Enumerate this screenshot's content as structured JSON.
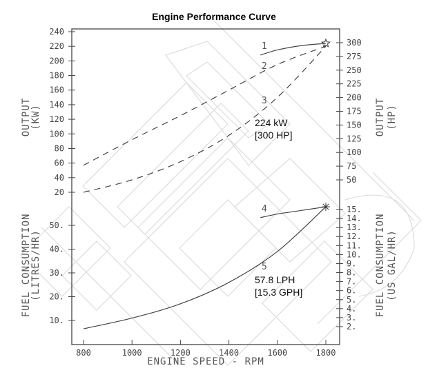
{
  "chart_data": {
    "type": "line",
    "title": "Engine Performance Curve",
    "xlabel": "ENGINE SPEED - RPM",
    "xlim": [
      800,
      1800
    ],
    "x_ticks": [
      "800",
      "1000",
      "1200",
      "1400",
      "1600",
      "1800"
    ],
    "axes": {
      "left_top": {
        "label": "OUTPUT",
        "unit": "(KW)",
        "range": [
          20,
          240
        ],
        "ticks": [
          "240",
          "220",
          "200",
          "180",
          "160",
          "140",
          "120",
          "100",
          "80",
          "60",
          "40",
          "20"
        ]
      },
      "left_bottom": {
        "label": "FUEL CONSUMPTION",
        "unit": "(LITRES/HR)",
        "range": [
          10,
          50
        ],
        "ticks": [
          "50.",
          "40.",
          "30.",
          "20.",
          "10."
        ]
      },
      "right_top": {
        "label": "OUTPUT",
        "unit": "(HP)",
        "range": [
          50,
          300
        ],
        "ticks": [
          "300",
          "275",
          "250",
          "225",
          "200",
          "175",
          "150",
          "125",
          "100",
          "75",
          "50"
        ]
      },
      "right_bottom": {
        "label": "FUEL CONSUMPTION",
        "unit": "(US GAL/HR)",
        "range": [
          2,
          15
        ],
        "ticks": [
          "15.",
          "14.",
          "13.",
          "12.",
          "11.",
          "10.",
          "9.",
          "8.",
          "7.",
          "6.",
          "5.",
          "4.",
          "3.",
          "2."
        ]
      }
    },
    "series": [
      {
        "name": "1",
        "style": "solid",
        "axis": "kW",
        "x": [
          1530,
          1600,
          1700,
          1800
        ],
        "values": [
          208,
          215,
          221,
          224
        ]
      },
      {
        "name": "2",
        "style": "dashed",
        "axis": "kW",
        "x": [
          800,
          1000,
          1200,
          1400,
          1600,
          1800
        ],
        "values": [
          57,
          92,
          125,
          160,
          195,
          220
        ]
      },
      {
        "name": "3",
        "style": "dashed",
        "axis": "kW",
        "x": [
          800,
          1000,
          1200,
          1400,
          1600,
          1800
        ],
        "values": [
          20,
          37,
          62,
          98,
          150,
          220
        ]
      },
      {
        "name": "4",
        "style": "solid",
        "axis": "GPH",
        "x": [
          1530,
          1600,
          1700,
          1800
        ],
        "values": [
          14.1,
          14.5,
          14.9,
          15.3
        ]
      },
      {
        "name": "5",
        "style": "solid",
        "axis": "LPH",
        "x": [
          800,
          1000,
          1200,
          1400,
          1600,
          1800
        ],
        "values": [
          6.5,
          11,
          17,
          26,
          39,
          57.8
        ]
      }
    ],
    "annotations": [
      {
        "text": "224 kW",
        "sub": "[300 HP]"
      },
      {
        "text": "57.8 LPH",
        "sub": "[15.3 GPH]"
      }
    ],
    "markers": [
      {
        "type": "star",
        "x": 1800,
        "value": 224,
        "axis": "kW"
      },
      {
        "type": "asterisk",
        "x": 1800,
        "value": 15.3,
        "axis": "GPH"
      }
    ],
    "grid": false,
    "legend": "inline curve numbers"
  },
  "labels": {
    "title": "Engine Performance Curve",
    "xlabel": "ENGINE SPEED - RPM",
    "left_output": "OUTPUT",
    "left_output_unit": "(KW)",
    "left_fuel": "FUEL CONSUMPTION",
    "left_fuel_unit": "(LITRES/HR)",
    "right_output": "OUTPUT",
    "right_output_unit": "(HP)",
    "right_fuel": "FUEL CONSUMPTION",
    "right_fuel_unit": "(US GAL/HR)",
    "curve1": "1",
    "curve2": "2",
    "curve3": "3",
    "curve4": "4",
    "curve5": "5",
    "power_annot": "224 kW",
    "power_annot_sub": "[300 HP]",
    "fuel_annot": "57.8 LPH",
    "fuel_annot_sub": "[15.3 GPH]"
  }
}
